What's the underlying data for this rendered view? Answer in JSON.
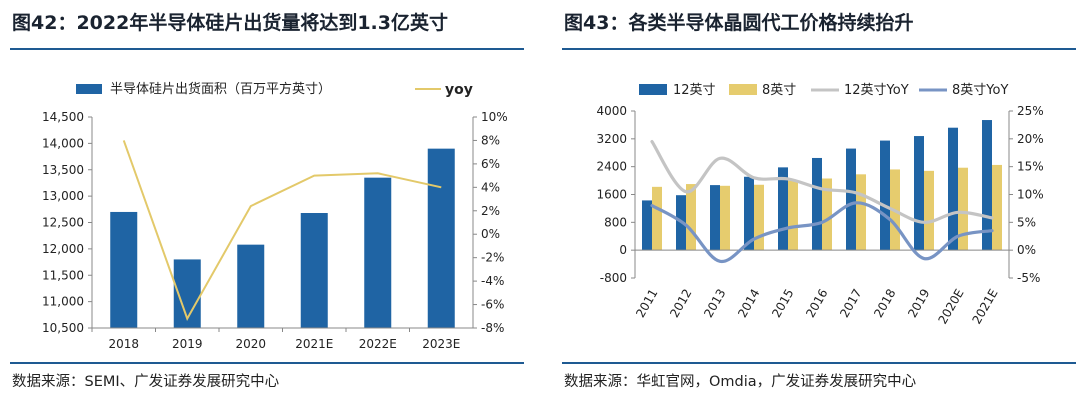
{
  "charts": [
    {
      "figure_title": "图42：2022年半导体硅片出货量将达到1.3亿英寸",
      "source": "数据来源：SEMI、广发证券发展研究中心",
      "colors": {
        "bar": "#1f64a4",
        "line": "#e3c96a"
      },
      "chart_data": {
        "type": "bar",
        "combo": "bar + line (secondary axis)",
        "categories": [
          "2018",
          "2019",
          "2020",
          "2021E",
          "2022E",
          "2023E"
        ],
        "series": [
          {
            "name": "半导体硅片出货面积（百万平方英寸）",
            "kind": "bar",
            "axis": "left",
            "values": [
              12700,
              11800,
              12080,
              12680,
              13350,
              13900
            ]
          },
          {
            "name": "yoy",
            "kind": "line",
            "axis": "right",
            "values": [
              8.0,
              -7.2,
              2.4,
              5.0,
              5.2,
              4.0
            ]
          }
        ],
        "ylim_left": [
          10500,
          14500
        ],
        "yticks_left": [
          "14,500",
          "14,000",
          "13,500",
          "13,000",
          "12,500",
          "12,000",
          "11,500",
          "11,000",
          "10,500"
        ],
        "ylim_right": [
          -8,
          10
        ],
        "yticks_right": [
          "10%",
          "8%",
          "6%",
          "4%",
          "2%",
          "0%",
          "-2%",
          "-4%",
          "-6%",
          "-8%"
        ],
        "legend": "top",
        "grid": false
      }
    },
    {
      "figure_title": "图43：各类半导体晶圆代工价格持续抬升",
      "source": "数据来源：华虹官网，Omdia，广发证券发展研究中心",
      "colors": {
        "bar1": "#1f64a4",
        "bar2": "#e6cc6e",
        "line1": "#c4c4c4",
        "line2": "#7894c4"
      },
      "chart_data": {
        "type": "bar",
        "combo": "grouped bar + line (secondary axis)",
        "categories": [
          "2011",
          "2012",
          "2013",
          "2014",
          "2015",
          "2016",
          "2017",
          "2018",
          "2019",
          "2020E",
          "2021E"
        ],
        "series": [
          {
            "name": "12英寸",
            "kind": "bar",
            "axis": "left",
            "values": [
              1430,
              1580,
              1870,
              2110,
              2380,
              2650,
              2920,
              3150,
              3280,
              3520,
              3740
            ]
          },
          {
            "name": "8英寸",
            "kind": "bar",
            "axis": "left",
            "values": [
              1820,
              1900,
              1850,
              1880,
              2000,
              2060,
              2180,
              2320,
              2280,
              2370,
              2450
            ]
          },
          {
            "name": "12英寸YoY",
            "kind": "line",
            "axis": "right",
            "values": [
              19.5,
              10.5,
              16.5,
              13.0,
              12.8,
              11.0,
              10.3,
              7.5,
              5.0,
              6.8,
              5.8
            ]
          },
          {
            "name": "8英寸YoY",
            "kind": "line",
            "axis": "right",
            "values": [
              8.0,
              4.5,
              -2.0,
              2.0,
              4.0,
              5.0,
              8.5,
              5.5,
              -1.5,
              2.5,
              3.5
            ]
          }
        ],
        "ylim_left": [
          -800,
          4000
        ],
        "yticks_left": [
          "4000",
          "3200",
          "2400",
          "1600",
          "800",
          "0",
          "-800"
        ],
        "ylim_right": [
          -5,
          25
        ],
        "yticks_right": [
          "25%",
          "20%",
          "15%",
          "10%",
          "5%",
          "0%",
          "-5%"
        ],
        "legend": "top",
        "grid": false
      }
    }
  ]
}
